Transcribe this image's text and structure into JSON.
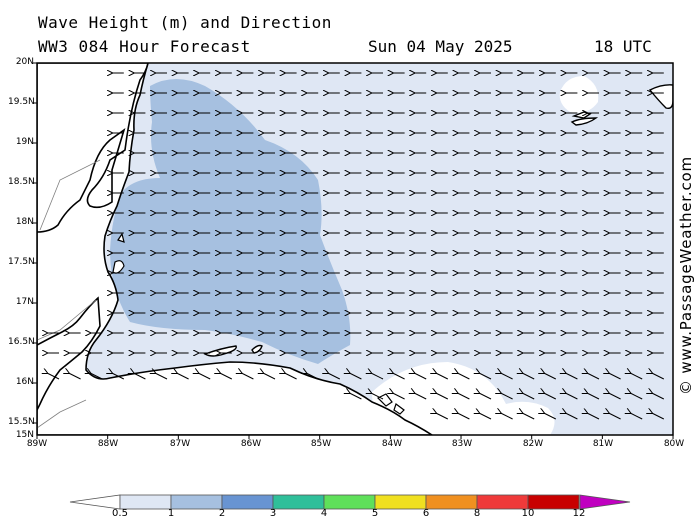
{
  "header": {
    "title": "Wave Height (m) and Direction",
    "model_line": "WW3 084 Hour Forecast",
    "date": "Sun 04 May 2025",
    "time": "18 UTC"
  },
  "watermark": "© www.PassageWeather.com",
  "axes": {
    "latitude_labels": [
      "20N",
      "19.5N",
      "19N",
      "18.5N",
      "18N",
      "17.5N",
      "17N",
      "16.5N",
      "16N",
      "15.5N",
      "15N"
    ],
    "longitude_labels": [
      "89W",
      "88W",
      "87W",
      "86W",
      "85W",
      "84W",
      "83W",
      "82W",
      "81W",
      "80W"
    ]
  },
  "colorbar": {
    "labels": [
      "0.5",
      "1",
      "2",
      "3",
      "4",
      "5",
      "6",
      "8",
      "10",
      "12"
    ],
    "colors": [
      "#dfe7f4",
      "#a6c0e0",
      "#6894d2",
      "#2fbf9a",
      "#5fe05a",
      "#f0e020",
      "#f09020",
      "#ef3a3a",
      "#c80000",
      "#c000c0"
    ],
    "low_end_color": "#ffffff"
  },
  "map_colors": {
    "land": "#ffffff",
    "sea_low": "#dfe7f4",
    "sea_mid": "#a6c0e0",
    "coastline": "#000000",
    "border": "#808080"
  },
  "wave_direction": "arrows point west toward the coast; rows 16N and below point north-west"
}
